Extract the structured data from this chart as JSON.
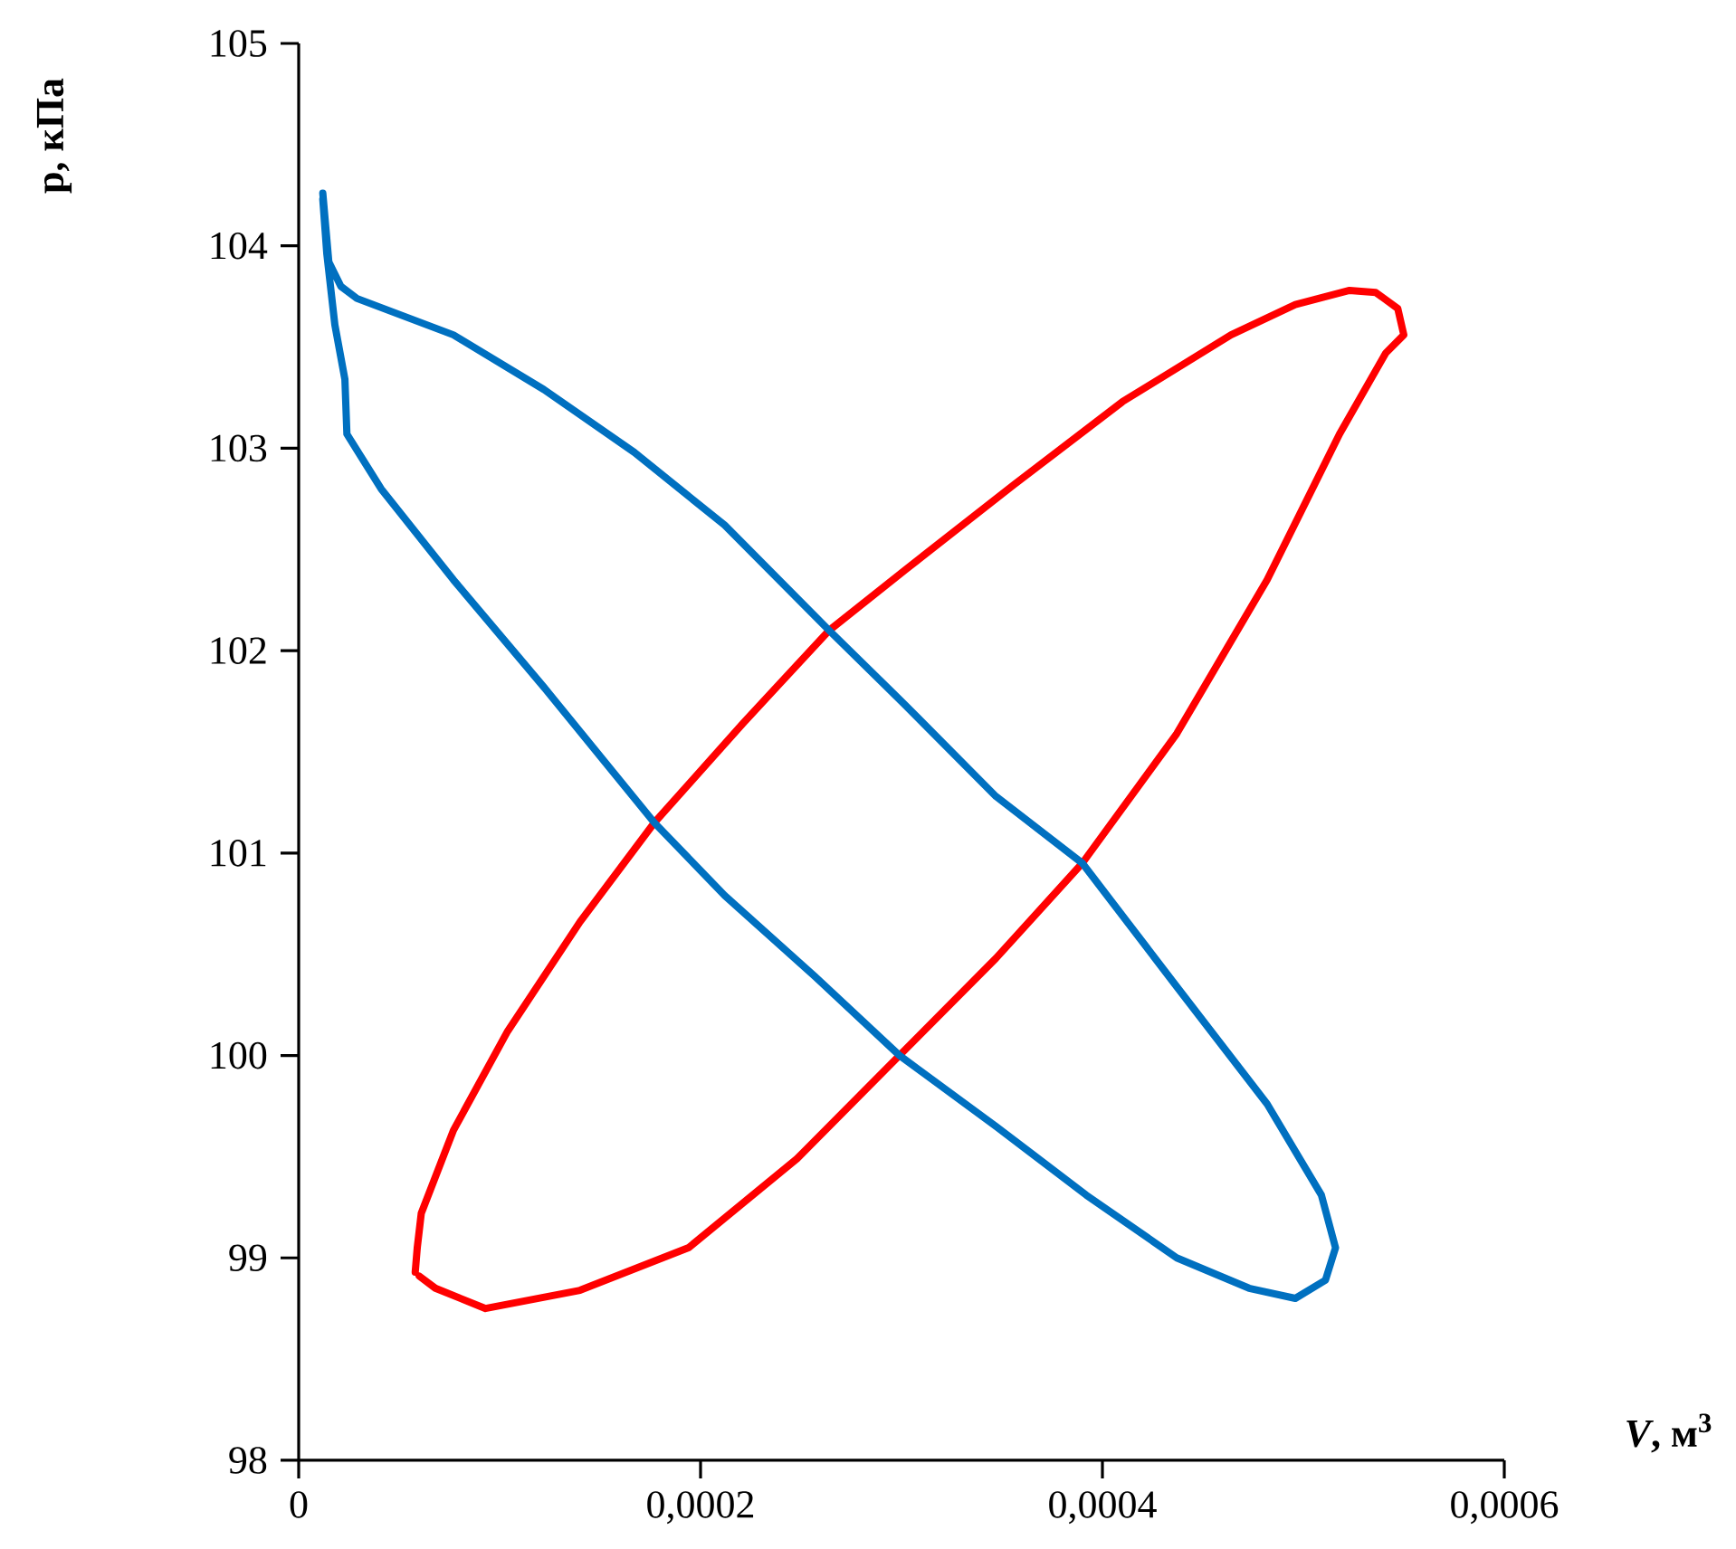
{
  "chart_data": {
    "type": "line",
    "xlabel": "*V*, м$^{3}$",
    "ylabel": "p, кПа",
    "xlim": [
      0,
      0.0006
    ],
    "ylim": [
      98,
      105
    ],
    "xticks": [
      0,
      {
        "value": 0.0002,
        "label": "0,0002"
      },
      {
        "value": 0.0004,
        "label": "0,0004"
      },
      {
        "value": 0.0006,
        "label": "0,0006"
      }
    ],
    "yticks": [
      98,
      99,
      100,
      101,
      102,
      103,
      104,
      105
    ],
    "marker": "none",
    "line_style": "solid",
    "series": [
      {
        "color": "#ff0000",
        "x": [
          6e-05,
          6.8e-05,
          9.3e-05,
          0.00014,
          0.000194,
          0.000248,
          0.000299,
          0.000347,
          0.00039,
          0.000437,
          0.000482,
          0.000518,
          0.000541,
          0.00055,
          0.000547,
          0.000536,
          0.000523,
          0.000496,
          0.000464,
          0.00041,
          0.000356,
          0.000302,
          0.000264,
          0.000221,
          0.000177,
          0.00014,
          0.000104,
          7.7e-05,
          6.1e-05,
          5.9e-05,
          5.8e-05
        ],
        "values": [
          98.91,
          98.85,
          98.75,
          98.84,
          99.05,
          99.49,
          100.0,
          100.48,
          100.95,
          101.59,
          102.35,
          103.07,
          103.47,
          103.56,
          103.69,
          103.77,
          103.78,
          103.71,
          103.56,
          103.23,
          102.82,
          102.4,
          102.1,
          101.64,
          101.15,
          100.66,
          100.12,
          99.63,
          99.22,
          99.05,
          98.93
        ]
      },
      {
        "color": "#0070c0",
        "x": [
          1.2e-05,
          1.5e-05,
          2.1e-05,
          2.9e-05,
          7.7e-05,
          0.000122,
          0.000167,
          0.000212,
          0.000264,
          0.000302,
          0.000347,
          0.00039,
          0.000437,
          0.000482,
          0.000509,
          0.000516,
          0.000511,
          0.000496,
          0.000473,
          0.000437,
          0.000392,
          0.000347,
          0.000299,
          0.000257,
          0.000212,
          0.000177,
          0.000122,
          7.7e-05,
          4.1e-05,
          2.4e-05,
          2.3e-05,
          1.8e-05,
          1.4e-05,
          1.2e-05
        ],
        "values": [
          104.26,
          103.92,
          103.8,
          103.74,
          103.56,
          103.29,
          102.98,
          102.62,
          102.1,
          101.73,
          101.28,
          100.95,
          100.34,
          99.76,
          99.31,
          99.05,
          98.89,
          98.8,
          98.85,
          99.0,
          99.31,
          99.65,
          100.0,
          100.39,
          100.79,
          101.15,
          101.82,
          102.35,
          102.8,
          103.07,
          103.34,
          103.61,
          103.96,
          104.23
        ]
      }
    ]
  }
}
